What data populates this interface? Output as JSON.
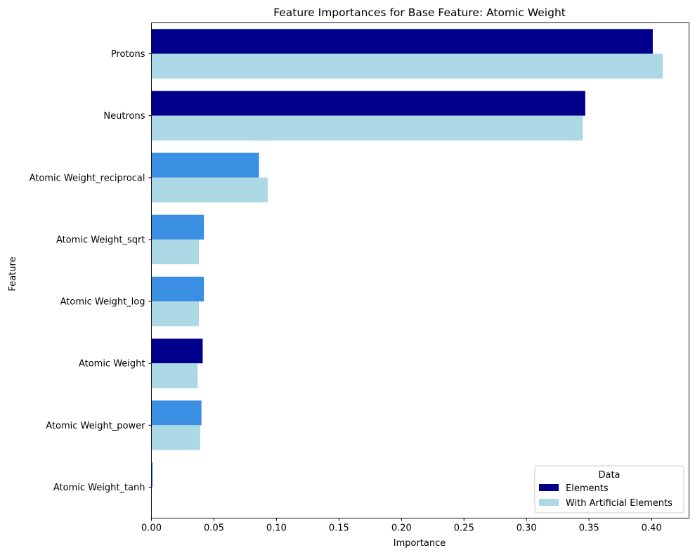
{
  "chart_data": {
    "type": "bar",
    "orientation": "horizontal",
    "title": "Feature Importances for Base Feature: Atomic Weight",
    "xlabel": "Importance",
    "ylabel": "Feature",
    "xlim": [
      0,
      0.43
    ],
    "xticks": [
      "0.00",
      "0.05",
      "0.10",
      "0.15",
      "0.20",
      "0.25",
      "0.30",
      "0.35",
      "0.40"
    ],
    "xtick_values": [
      0,
      0.05,
      0.1,
      0.15,
      0.2,
      0.25,
      0.3,
      0.35,
      0.4
    ],
    "categories": [
      "Protons",
      "Neutrons",
      "Atomic Weight_reciprocal",
      "Atomic Weight_sqrt",
      "Atomic Weight_log",
      "Atomic Weight",
      "Atomic Weight_power",
      "Atomic Weight_tanh"
    ],
    "series": [
      {
        "name": "Elements",
        "values": [
          0.401,
          0.347,
          0.086,
          0.042,
          0.042,
          0.041,
          0.04,
          0.001
        ],
        "colors": [
          "#00008b",
          "#00008b",
          "#3b8fe3",
          "#3b8fe3",
          "#3b8fe3",
          "#00008b",
          "#3b8fe3",
          "#3b8fe3"
        ]
      },
      {
        "name": "With Artificial Elements",
        "values": [
          0.409,
          0.345,
          0.093,
          0.038,
          0.038,
          0.037,
          0.039,
          0.0
        ],
        "colors": [
          "#add8e6",
          "#add8e6",
          "#add8e6",
          "#add8e6",
          "#add8e6",
          "#add8e6",
          "#add8e6",
          "#add8e6"
        ]
      }
    ],
    "legend": {
      "title": "Data",
      "placement": "lower-right",
      "entries": [
        {
          "label": "Elements",
          "color": "#00008b"
        },
        {
          "label": "With Artificial Elements",
          "color": "#add8e6"
        }
      ]
    },
    "grid": false
  }
}
